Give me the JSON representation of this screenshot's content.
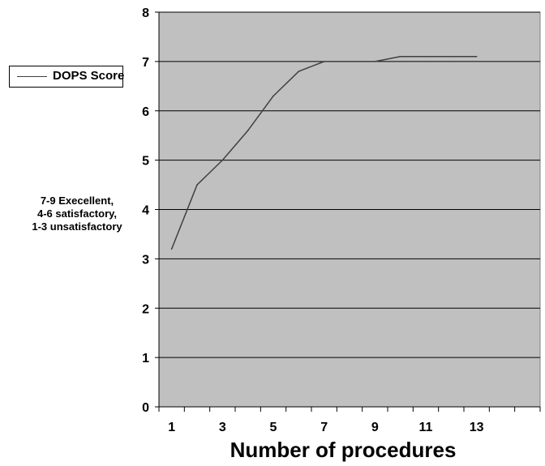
{
  "chart_data": {
    "type": "line",
    "x": [
      1,
      2,
      3,
      4,
      5,
      6,
      7,
      8,
      9,
      10,
      11,
      12,
      13
    ],
    "series": [
      {
        "name": "DOPS Score",
        "values": [
          3.2,
          4.5,
          5.0,
          5.6,
          6.3,
          6.8,
          7.0,
          7.0,
          7.0,
          7.1,
          7.1,
          7.1,
          7.1
        ],
        "color": "#404040"
      }
    ],
    "xlabel": "Number of procedures",
    "ylabel": "",
    "ylim": [
      0,
      8
    ],
    "xlim": [
      0.5,
      15.5
    ],
    "yticks": [
      0,
      1,
      2,
      3,
      4,
      5,
      6,
      7,
      8
    ],
    "xtick_labels": [
      "1",
      "3",
      "5",
      "7",
      "9",
      "11",
      "13"
    ],
    "grid": true,
    "legend": {
      "position": "left",
      "entries": [
        "DOPS Score"
      ]
    },
    "annotation": [
      "7-9 Execellent,",
      "4-6 satisfactory,",
      "1-3 unsatisfactory"
    ],
    "colors": {
      "plot_background": "#c0c0c0",
      "gridline": "#000000",
      "line": "#404040"
    }
  }
}
